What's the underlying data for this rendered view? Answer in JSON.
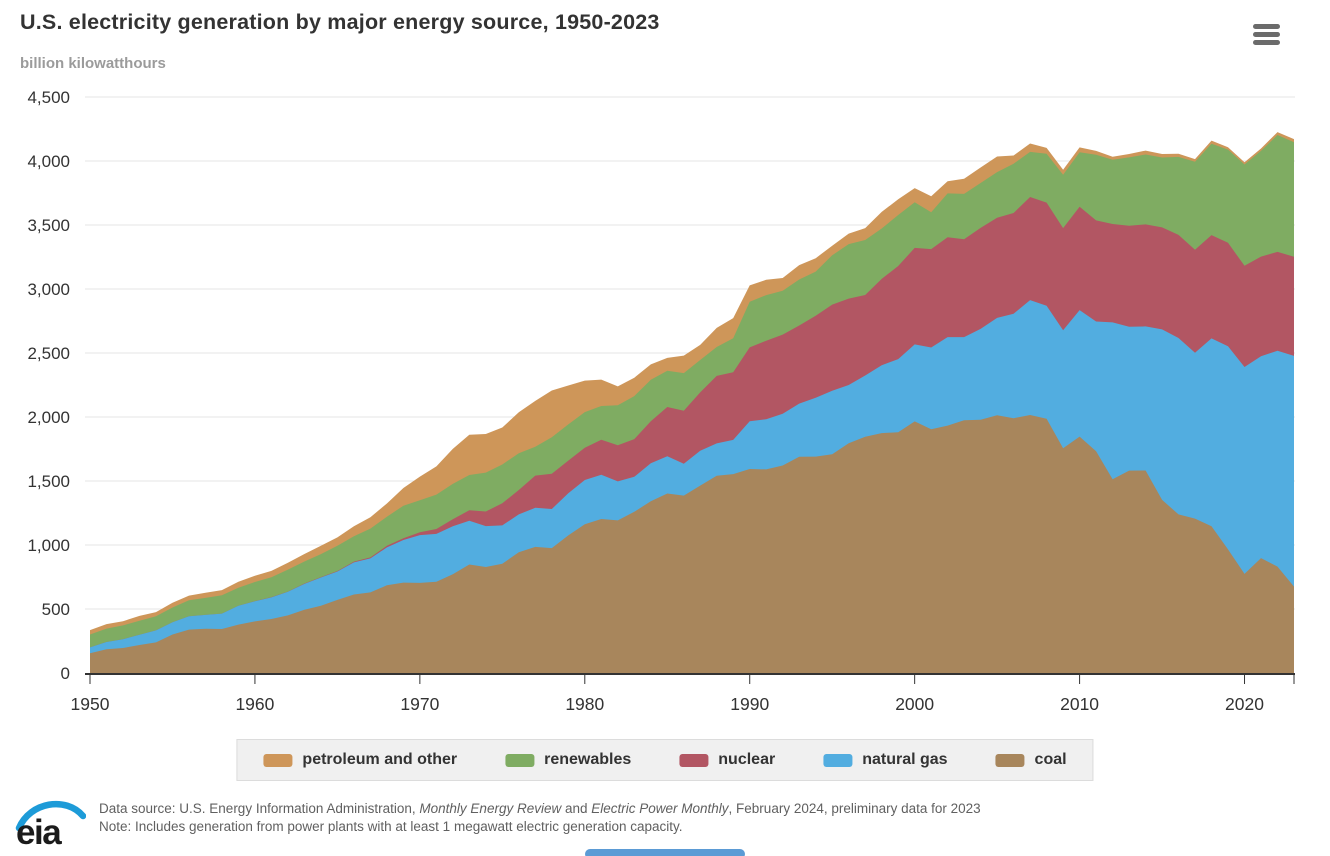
{
  "header": {
    "menu_icon": "hamburger-menu-icon"
  },
  "chart_data": {
    "type": "area",
    "stacked": true,
    "title": "U.S. electricity generation by major energy source, 1950-2023",
    "subtitle": "billion kilowatthours",
    "xlabel": "",
    "ylabel": "billion kilowatthours",
    "ylim": [
      0,
      4500
    ],
    "ytick_interval": 500,
    "ytick_labels": [
      "0",
      "500",
      "1,000",
      "1,500",
      "2,000",
      "2,500",
      "3,000",
      "3,500",
      "4,000",
      "4,500"
    ],
    "xtick_labels": [
      "1950",
      "1960",
      "1970",
      "1980",
      "1990",
      "2000",
      "2010",
      "2020"
    ],
    "grid": true,
    "legend_position": "bottom",
    "x": [
      1950,
      1951,
      1952,
      1953,
      1954,
      1955,
      1956,
      1957,
      1958,
      1959,
      1960,
      1961,
      1962,
      1963,
      1964,
      1965,
      1966,
      1967,
      1968,
      1969,
      1970,
      1971,
      1972,
      1973,
      1974,
      1975,
      1976,
      1977,
      1978,
      1979,
      1980,
      1981,
      1982,
      1983,
      1984,
      1985,
      1986,
      1987,
      1988,
      1989,
      1990,
      1991,
      1992,
      1993,
      1994,
      1995,
      1996,
      1997,
      1998,
      1999,
      2000,
      2001,
      2002,
      2003,
      2004,
      2005,
      2006,
      2007,
      2008,
      2009,
      2010,
      2011,
      2012,
      2013,
      2014,
      2015,
      2016,
      2017,
      2018,
      2019,
      2020,
      2021,
      2022,
      2023
    ],
    "series": [
      {
        "name": "coal",
        "color": "#a8865c",
        "values": [
          155,
          185,
          195,
          219,
          239,
          301,
          339,
          346,
          344,
          378,
          403,
          422,
          450,
          494,
          526,
          571,
          613,
          630,
          685,
          706,
          704,
          713,
          771,
          848,
          828,
          853,
          944,
          985,
          976,
          1075,
          1162,
          1203,
          1192,
          1259,
          1342,
          1402,
          1386,
          1464,
          1541,
          1554,
          1594,
          1591,
          1621,
          1690,
          1691,
          1709,
          1795,
          1845,
          1874,
          1881,
          1966,
          1904,
          1933,
          1974,
          1978,
          2013,
          1991,
          2016,
          1986,
          1756,
          1847,
          1733,
          1514,
          1581,
          1582,
          1352,
          1239,
          1206,
          1146,
          966,
          774,
          898,
          831,
          675
        ]
      },
      {
        "name": "natural gas",
        "color": "#52ade0",
        "values": [
          45,
          57,
          68,
          80,
          94,
          95,
          104,
          108,
          120,
          147,
          158,
          169,
          184,
          202,
          220,
          222,
          251,
          265,
          296,
          333,
          373,
          374,
          376,
          341,
          320,
          300,
          295,
          306,
          305,
          329,
          346,
          346,
          305,
          274,
          297,
          292,
          249,
          273,
          253,
          267,
          373,
          392,
          404,
          415,
          460,
          496,
          455,
          479,
          531,
          571,
          601,
          639,
          691,
          650,
          710,
          761,
          816,
          897,
          883,
          921,
          988,
          1013,
          1225,
          1124,
          1126,
          1332,
          1378,
          1296,
          1468,
          1586,
          1617,
          1577,
          1687,
          1802
        ]
      },
      {
        "name": "nuclear",
        "color": "#b25663",
        "values": [
          0,
          0,
          0,
          0,
          0,
          0,
          0,
          0,
          0,
          0,
          1,
          2,
          2,
          3,
          3,
          4,
          6,
          8,
          13,
          14,
          22,
          38,
          54,
          83,
          114,
          173,
          191,
          251,
          276,
          255,
          251,
          273,
          283,
          294,
          328,
          384,
          414,
          455,
          527,
          529,
          577,
          613,
          619,
          610,
          640,
          673,
          675,
          629,
          674,
          728,
          754,
          769,
          780,
          764,
          789,
          782,
          787,
          806,
          806,
          799,
          807,
          790,
          769,
          789,
          797,
          797,
          806,
          805,
          807,
          809,
          790,
          778,
          772,
          775
        ]
      },
      {
        "name": "renewables",
        "color": "#7fac62",
        "values": [
          101,
          105,
          109,
          109,
          110,
          116,
          125,
          133,
          144,
          141,
          149,
          155,
          172,
          172,
          180,
          197,
          198,
          225,
          226,
          254,
          251,
          269,
          276,
          275,
          304,
          303,
          287,
          226,
          285,
          283,
          279,
          264,
          312,
          336,
          324,
          284,
          294,
          253,
          226,
          265,
          357,
          356,
          342,
          359,
          345,
          385,
          426,
          430,
          394,
          398,
          356,
          288,
          343,
          355,
          351,
          357,
          385,
          352,
          381,
          417,
          427,
          513,
          502,
          534,
          546,
          546,
          609,
          687,
          713,
          728,
          792,
          826,
          913,
          894
        ]
      },
      {
        "name": "petroleum and other",
        "color": "#ce9659",
        "values": [
          34,
          35,
          33,
          38,
          33,
          37,
          37,
          40,
          40,
          47,
          48,
          50,
          54,
          59,
          65,
          65,
          79,
          89,
          104,
          138,
          184,
          220,
          274,
          314,
          301,
          289,
          320,
          358,
          365,
          304,
          246,
          206,
          147,
          144,
          120,
          100,
          137,
          118,
          149,
          158,
          127,
          120,
          100,
          113,
          105,
          75,
          82,
          93,
          129,
          123,
          111,
          125,
          95,
          119,
          121,
          122,
          64,
          66,
          46,
          39,
          37,
          30,
          23,
          27,
          30,
          28,
          24,
          21,
          25,
          19,
          17,
          19,
          23,
          25
        ]
      }
    ],
    "colors": {
      "grid": "#e6e6e6",
      "axis": "#333333",
      "tick_label": "#333333"
    }
  },
  "legend": {
    "items": [
      {
        "label": "petroleum and other",
        "color": "#ce9659"
      },
      {
        "label": "renewables",
        "color": "#7fac62"
      },
      {
        "label": "nuclear",
        "color": "#b25663"
      },
      {
        "label": "natural gas",
        "color": "#52ade0"
      },
      {
        "label": "coal",
        "color": "#a8865c"
      }
    ]
  },
  "footer": {
    "logo_text": "eia",
    "logo_accent_color": "#1d9bd8",
    "source_parts": [
      {
        "text": "Data source: U.S. Energy Information Administration, ",
        "italic": false
      },
      {
        "text": "Monthly Energy Review",
        "italic": true
      },
      {
        "text": " and ",
        "italic": false
      },
      {
        "text": "Electric Power Monthly",
        "italic": true
      },
      {
        "text": ", February 2024, preliminary data for 2023",
        "italic": false
      }
    ],
    "note": "Note: Includes generation from power plants with at least 1 megawatt electric generation capacity."
  }
}
